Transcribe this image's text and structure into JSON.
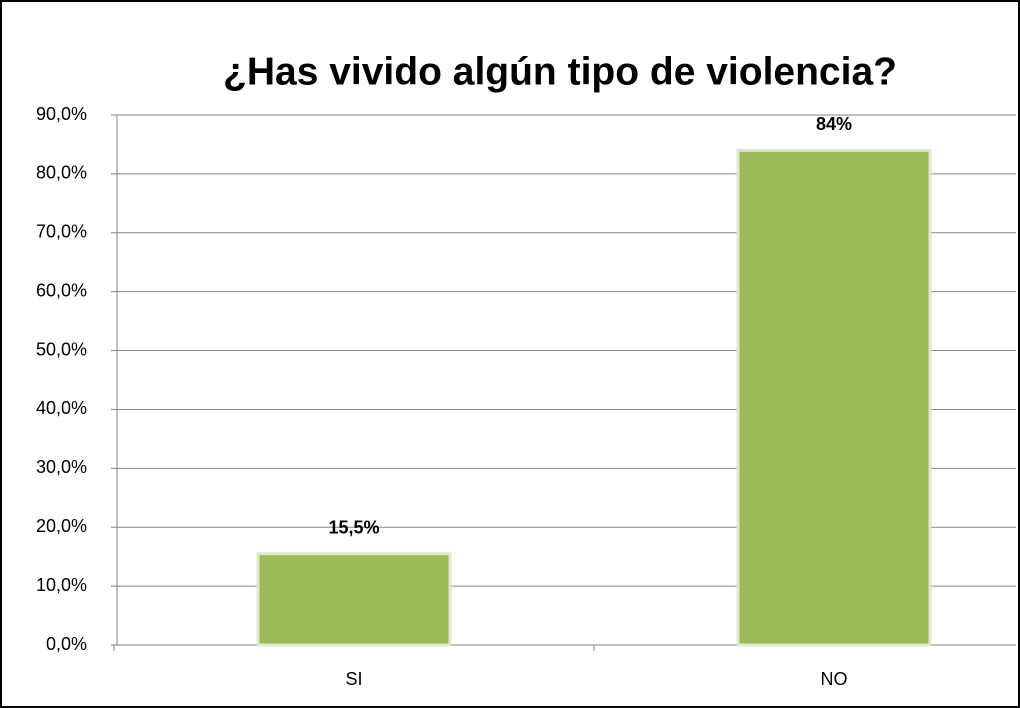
{
  "chart_data": {
    "type": "bar",
    "title": "¿Has vivido algún tipo de violencia?",
    "categories": [
      "SI",
      "NO"
    ],
    "values": [
      15.5,
      84
    ],
    "value_labels": [
      "15,5%",
      "84%"
    ],
    "color": "#9bbb59",
    "ylim": [
      0,
      90
    ],
    "yticks": [
      {
        "value": 0,
        "label": "0,0%"
      },
      {
        "value": 10,
        "label": "10,0%"
      },
      {
        "value": 20,
        "label": "20,0%"
      },
      {
        "value": 30,
        "label": "30,0%"
      },
      {
        "value": 40,
        "label": "40,0%"
      },
      {
        "value": 50,
        "label": "50,0%"
      },
      {
        "value": 60,
        "label": "60,0%"
      },
      {
        "value": 70,
        "label": "70,0%"
      },
      {
        "value": 80,
        "label": "80,0%"
      },
      {
        "value": 90,
        "label": "90,0%"
      }
    ],
    "grid": true
  }
}
